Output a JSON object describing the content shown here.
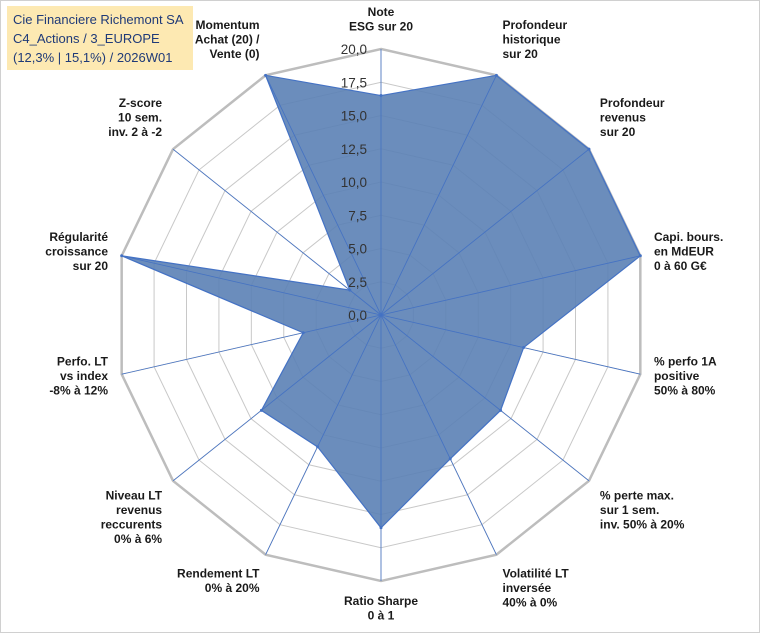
{
  "header": {
    "line1": "Cie Financiere Richemont SA",
    "line2": "C4_Actions / 3_EUROPE",
    "line3": "(12,3% | 15,1%) / 2026W01"
  },
  "colors": {
    "fill": "#5b81b5",
    "stroke": "#4472c4",
    "grid": "#c8c8c8",
    "title_bg": "#fde9b2",
    "title_text": "#1f3a78"
  },
  "chart_data": {
    "type": "radar",
    "title": "",
    "rlim": [
      0,
      20
    ],
    "grid": true,
    "tick_labels": [
      "0,0",
      "2,5",
      "5,0",
      "7,5",
      "10,0",
      "12,5",
      "15,0",
      "17,5",
      "20,0"
    ],
    "axes": [
      {
        "lines": [
          "Note",
          "ESG sur 20"
        ],
        "value": 16.5
      },
      {
        "lines": [
          "Profondeur",
          "historique",
          "sur 20"
        ],
        "value": 20
      },
      {
        "lines": [
          "Profondeur",
          "revenus",
          "sur 20"
        ],
        "value": 20
      },
      {
        "lines": [
          "Capi. bours.",
          "en MdEUR",
          "0 à 60 G€"
        ],
        "value": 20
      },
      {
        "lines": [
          "% perfo 1A",
          "positive",
          "50% à 80%"
        ],
        "value": 11
      },
      {
        "lines": [
          "% perte max.",
          "sur 1 sem.",
          "inv. 50% à 20%"
        ],
        "value": 11.5
      },
      {
        "lines": [
          "Volatilité LT",
          "inversée",
          "40% à 0%"
        ],
        "value": 12
      },
      {
        "lines": [
          "Ratio Sharpe",
          "0 à 1"
        ],
        "value": 16
      },
      {
        "lines": [
          "Rendement LT",
          "0% à 20%"
        ],
        "value": 11
      },
      {
        "lines": [
          "Niveau LT",
          "revenus",
          "reccurents",
          "0% à 6%"
        ],
        "value": 11.5
      },
      {
        "lines": [
          "Perfo. LT",
          "vs index",
          "-8% à 12%"
        ],
        "value": 6
      },
      {
        "lines": [
          "Régularité",
          "croissance",
          "sur 20"
        ],
        "value": 20
      },
      {
        "lines": [
          "Z-score",
          "10 sem.",
          "inv. 2 à -2"
        ],
        "value": 3
      },
      {
        "lines": [
          "Momentum",
          "Achat (20) /",
          "Vente (0)"
        ],
        "value": 20
      }
    ]
  }
}
